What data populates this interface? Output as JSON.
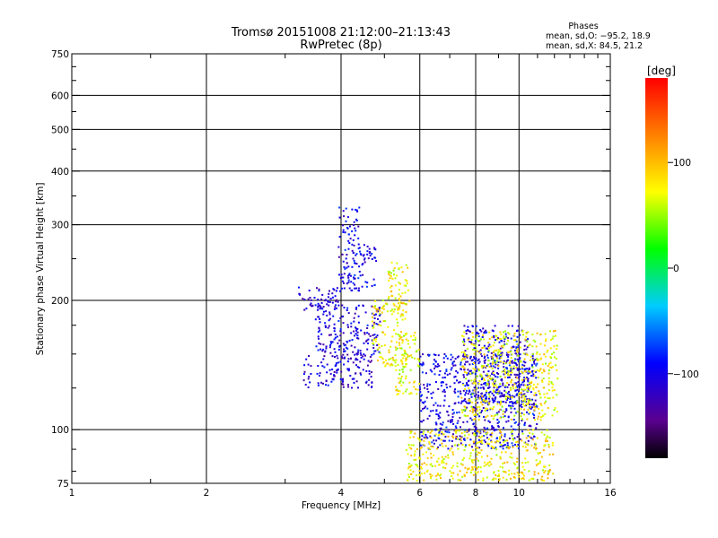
{
  "chart_data": {
    "type": "scatter",
    "title": "Tromsø 20151008 21:12:00–21:13:43",
    "subtitle": "RwPretec (8p)",
    "xlabel": "Frequency [MHz]",
    "ylabel": "Stationary phase Virtual Height [km]",
    "x_scale": "log",
    "y_scale": "log",
    "xlim": [
      1,
      16
    ],
    "ylim": [
      75,
      750
    ],
    "x_ticks": [
      "1",
      "2",
      "4",
      "6",
      "8",
      "10",
      "16"
    ],
    "y_ticks": [
      "75",
      "100",
      "200",
      "300",
      "400",
      "500",
      "600",
      "750"
    ],
    "grid": true,
    "phases_title": "Phases",
    "phases_lines": [
      "mean, sd,O: −95.2, 18.9",
      "mean, sd,X:  84.5, 21.2"
    ],
    "colorbar": {
      "label": "[deg]",
      "range": [
        -180,
        180
      ],
      "ticks": [
        "100",
        "0",
        "−100"
      ],
      "colormap": "rainbow (black-purple-blue-cyan-green-yellow-orange-red)"
    },
    "series": [
      {
        "phase_group": "O-mode (blue, about −100°)",
        "clusters": [
          {
            "f": [
              3.3,
              4.7
            ],
            "h": [
              125,
              150
            ],
            "phase": -110
          },
          {
            "f": [
              3.5,
              4.9
            ],
            "h": [
              150,
              195
            ],
            "phase": -105
          },
          {
            "f": [
              3.2,
              4.0
            ],
            "h": [
              190,
              215
            ],
            "phase": -110
          },
          {
            "f": [
              3.95,
              4.4
            ],
            "h": [
              210,
              330
            ],
            "phase": -100
          },
          {
            "f": [
              4.4,
              4.8
            ],
            "h": [
              215,
              270
            ],
            "phase": -100
          },
          {
            "f": [
              6.0,
              11.0
            ],
            "h": [
              90,
              150
            ],
            "phase": -100
          },
          {
            "f": [
              7.5,
              10.5
            ],
            "h": [
              115,
              175
            ],
            "phase": -105
          }
        ]
      },
      {
        "phase_group": "X-mode (yellow-green, about +80°)",
        "clusters": [
          {
            "f": [
              4.7,
              5.6
            ],
            "h": [
              140,
              200
            ],
            "phase": 80
          },
          {
            "f": [
              5.1,
              5.7
            ],
            "h": [
              195,
              245
            ],
            "phase": 75
          },
          {
            "f": [
              5.3,
              6.0
            ],
            "h": [
              120,
              170
            ],
            "phase": 70
          },
          {
            "f": [
              7.4,
              12.2
            ],
            "h": [
              105,
              170
            ],
            "phase": 75
          },
          {
            "f": [
              5.6,
              12.0
            ],
            "h": [
              76,
              100
            ],
            "phase": 80
          }
        ]
      }
    ]
  }
}
